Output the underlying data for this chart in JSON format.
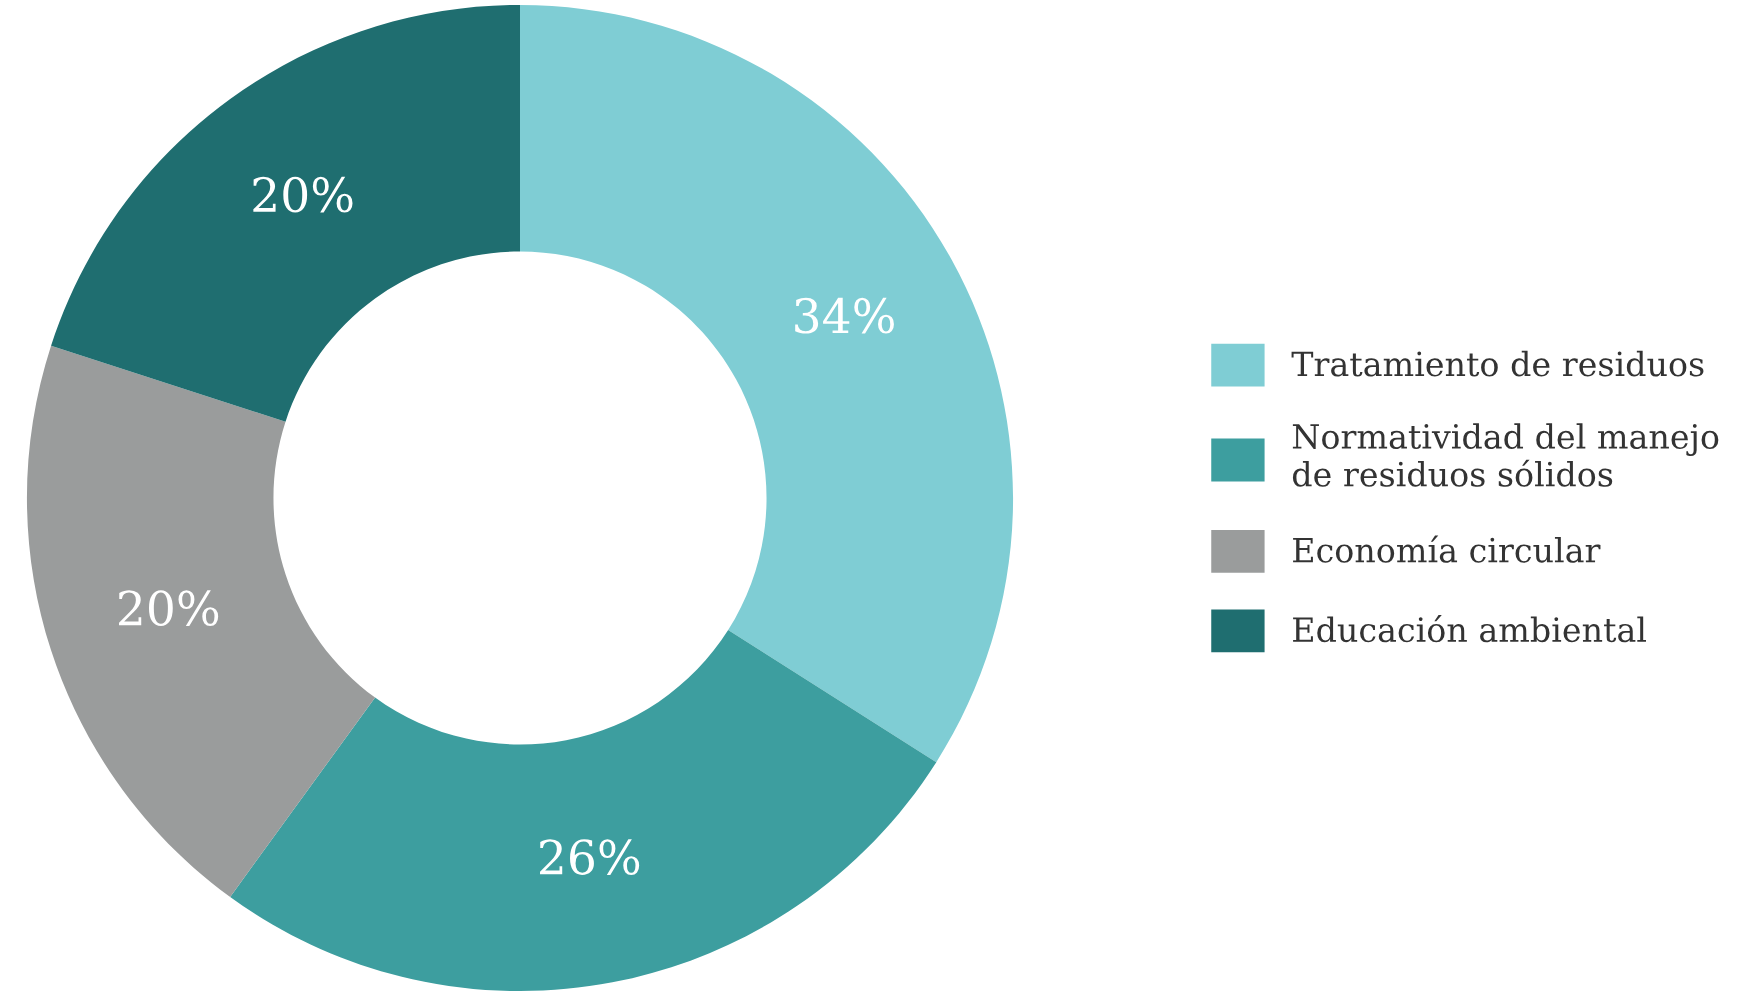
{
  "chart_data": {
    "type": "donut",
    "categories": [
      "Tratamiento de residuos",
      "Normatividad del manejo\nde residuos sólidos",
      "Economía circular",
      "Educación ambiental"
    ],
    "values": [
      34,
      26,
      20,
      20
    ],
    "value_labels": [
      "34%",
      "26%",
      "20%",
      "20%"
    ],
    "colors": [
      "#7fcdd4",
      "#3d9e9f",
      "#9a9c9c",
      "#1f6e70"
    ],
    "legend": "right"
  }
}
